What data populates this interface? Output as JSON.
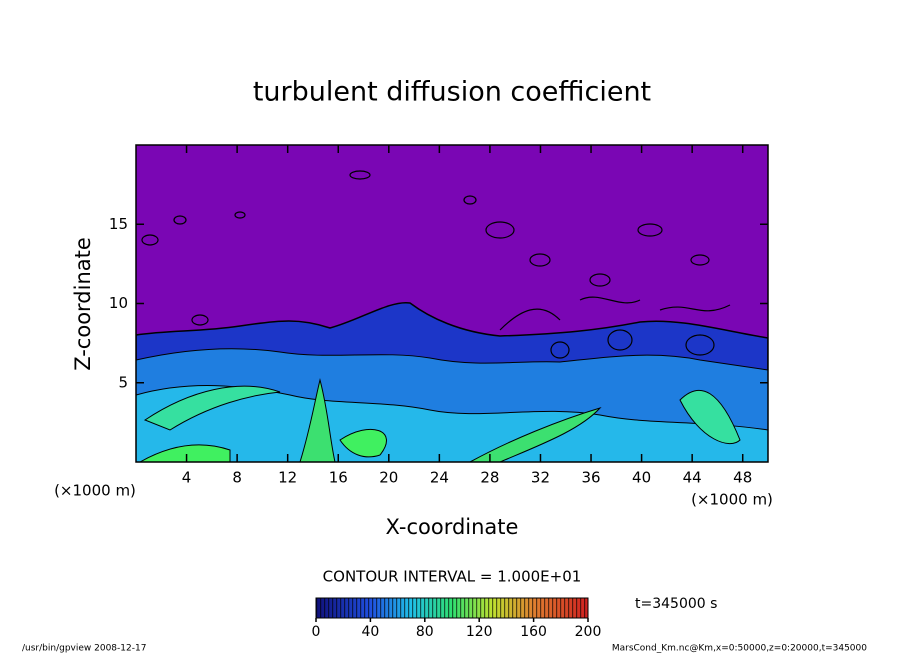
{
  "chart_data": {
    "type": "contour",
    "title": "turbulent diffusion coefficient",
    "x_label": "X-coordinate",
    "y_label": "Z-coordinate",
    "x_unit": "(×1000 m)",
    "y_unit": "(×1000 m)",
    "xlim": [
      0,
      50
    ],
    "xticks": [
      4,
      8,
      12,
      16,
      20,
      24,
      28,
      32,
      36,
      40,
      44,
      48
    ],
    "ylim": [
      0,
      20
    ],
    "yticks": [
      5,
      10,
      15
    ],
    "contour_interval": "CONTOUR INTERVAL = 1.000E+01",
    "time_label": "t=345000 s",
    "colorbar": {
      "lim": [
        0,
        200
      ],
      "ticks": [
        0,
        40,
        80,
        120,
        160,
        200
      ]
    },
    "footer_left": "/usr/bin/gpview   2008-12-17",
    "footer_right": "MarsCond_Km.nc@Km,x=0:50000,z=0:20000,t=345000"
  }
}
